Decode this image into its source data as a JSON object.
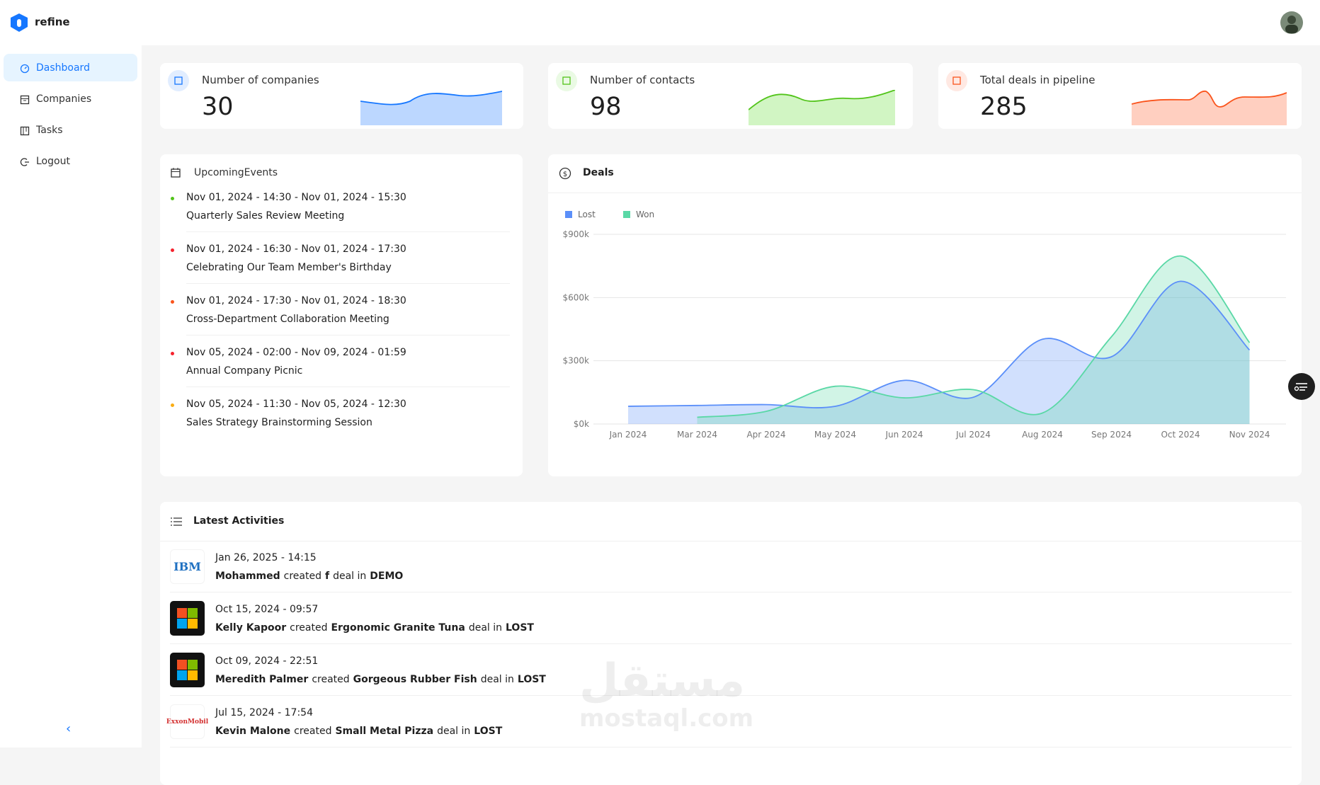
{
  "header": {
    "brand": "refine"
  },
  "sidebar": {
    "menu": [
      "Dashboard",
      "Companies",
      "Tasks",
      "Logout"
    ]
  },
  "stats": [
    {
      "title": "Number of companies",
      "value": 30
    },
    {
      "title": "Number of contacts",
      "value": 98
    },
    {
      "title": "Total deals in pipeline",
      "value": 285
    }
  ],
  "events": {
    "title": "UpcomingEvents",
    "items": [
      {
        "time": "Nov 01, 2024 - 14:30 - Nov 01, 2024 - 15:30",
        "title": "Quarterly Sales Review Meeting",
        "color": "#52c41a"
      },
      {
        "time": "Nov 01, 2024 - 16:30 - Nov 01, 2024 - 17:30",
        "title": "Celebrating Our Team Member's Birthday",
        "color": "#f5222d"
      },
      {
        "time": "Nov 01, 2024 - 17:30 - Nov 01, 2024 - 18:30",
        "title": "Cross-Department Collaboration Meeting",
        "color": "#fa541c"
      },
      {
        "time": "Nov 05, 2024 - 02:00 - Nov 09, 2024 - 01:59",
        "title": "Annual Company Picnic",
        "color": "#f5222d"
      },
      {
        "time": "Nov 05, 2024 - 11:30 - Nov 05, 2024 - 12:30",
        "title": "Sales Strategy Brainstorming Session",
        "color": "#faad14"
      }
    ]
  },
  "chart_data": {
    "type": "area",
    "title": "Deals",
    "categories": [
      "Jan 2024",
      "Mar 2024",
      "Apr 2024",
      "May 2024",
      "Jun 2024",
      "Jul 2024",
      "Aug 2024",
      "Sep 2024",
      "Oct 2024",
      "Nov 2024"
    ],
    "series": [
      {
        "name": "Lost",
        "color": "#5b8ff9",
        "values": [
          84000,
          88000,
          92000,
          84000,
          207000,
          127000,
          402000,
          319000,
          677000,
          351000
        ]
      },
      {
        "name": "Won",
        "color": "#5ad8a6",
        "values": [
          null,
          32000,
          60000,
          179000,
          124000,
          163000,
          52000,
          414000,
          797000,
          386000
        ]
      }
    ],
    "ylim": [
      0,
      900000
    ],
    "yticks": [
      {
        "value": 0,
        "label": "$0k"
      },
      {
        "value": 300000,
        "label": "$300k"
      },
      {
        "value": 600000,
        "label": "$600k"
      },
      {
        "value": 900000,
        "label": "$900k"
      }
    ],
    "grid": true,
    "legend": "top-left"
  },
  "activities": {
    "title": "Latest Activities",
    "items": [
      {
        "logo": "IBM",
        "date": "Jan 26, 2025 - 14:15",
        "user": "Mohammed",
        "action": "created",
        "deal": "f",
        "connector": "deal in",
        "stage": "DEMO"
      },
      {
        "date": "Oct 15, 2024 - 09:57",
        "user": "Kelly Kapoor",
        "action": "created",
        "deal": "Ergonomic Granite Tuna",
        "connector": "deal in",
        "stage": "LOST"
      },
      {
        "date": "Oct 09, 2024 - 22:51",
        "user": "Meredith Palmer",
        "action": "created",
        "deal": "Gorgeous Rubber Fish",
        "connector": "deal in",
        "stage": "LOST"
      },
      {
        "logo": "ExxonMobil",
        "date": "Jul 15, 2024 - 17:54",
        "user": "Kevin Malone",
        "action": "created",
        "deal": "Small Metal Pizza",
        "connector": "deal in",
        "stage": "LOST"
      }
    ]
  },
  "watermark": {
    "arabic": "مستقل",
    "latin": "mostaql.com"
  }
}
